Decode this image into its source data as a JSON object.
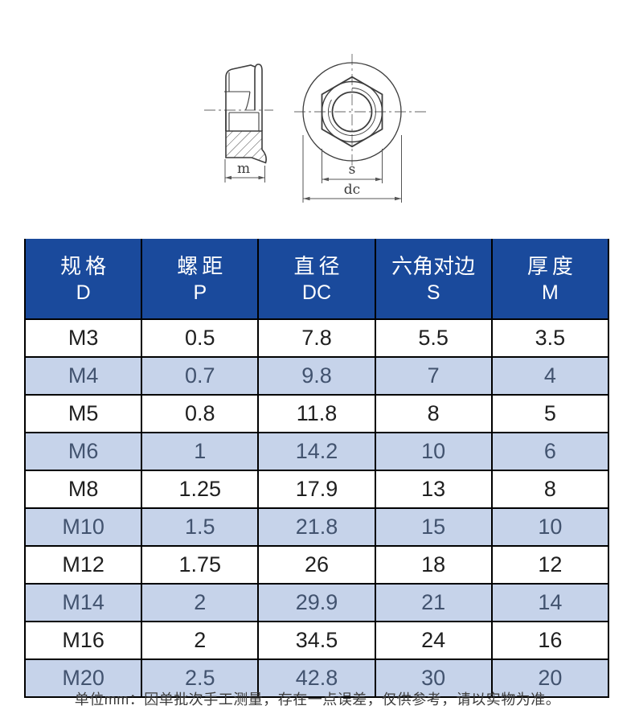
{
  "colors": {
    "header_bg": "#1a4a9c",
    "header_text": "#ffffff",
    "alt_row_bg": "#c6d3ea",
    "row_text": "#1f1f1f",
    "alt_row_text": "#42536f",
    "table_border": "#000000",
    "drawing_line": "#3d3d3d"
  },
  "diagram": {
    "description": "flange-nut technical drawing, side section and top view",
    "labels": {
      "m": "m",
      "s": "s",
      "dc": "dc"
    }
  },
  "table": {
    "columns": [
      {
        "zh": "规格",
        "en": "D"
      },
      {
        "zh": "螺距",
        "en": "P"
      },
      {
        "zh": "直径",
        "en": "DC"
      },
      {
        "zh": "六角对边",
        "en": "S"
      },
      {
        "zh": "厚度",
        "en": "M"
      }
    ],
    "rows": [
      [
        "M3",
        "0.5",
        "7.8",
        "5.5",
        "3.5"
      ],
      [
        "M4",
        "0.7",
        "9.8",
        "7",
        "4"
      ],
      [
        "M5",
        "0.8",
        "11.8",
        "8",
        "5"
      ],
      [
        "M6",
        "1",
        "14.2",
        "10",
        "6"
      ],
      [
        "M8",
        "1.25",
        "17.9",
        "13",
        "8"
      ],
      [
        "M10",
        "1.5",
        "21.8",
        "15",
        "10"
      ],
      [
        "M12",
        "1.75",
        "26",
        "18",
        "12"
      ],
      [
        "M14",
        "2",
        "29.9",
        "21",
        "14"
      ],
      [
        "M16",
        "2",
        "34.5",
        "24",
        "16"
      ],
      [
        "M20",
        "2.5",
        "42.8",
        "30",
        "20"
      ]
    ]
  },
  "footer": {
    "note": "单位mm：因单批次手工测量，存在一点误差，仅供参考，请以实物为准。"
  }
}
